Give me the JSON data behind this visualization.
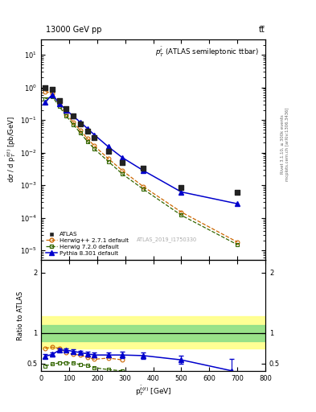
{
  "title_top": "13000 GeV pp",
  "title_right": "tt̅",
  "plot_label": "$p_T^{\\bar{t}}$ (ATLAS semileptonic ttbar)",
  "watermark": "ATLAS_2019_I1750330",
  "right_label1": "Rivet 3.1.10, ≥ 300k events",
  "right_label2": "mcplots.cern.ch [arXiv:1306.3436]",
  "ylabel_main": "dσ / d p$_T^{\\bar{t}(t)}$ [pb/GeV]",
  "ylabel_ratio": "Ratio to ATLAS",
  "xlabel": "p$_T^{\\bar{t}(t)}$ [GeV]",
  "atlas_x": [
    15,
    40,
    65,
    90,
    115,
    140,
    165,
    190,
    240,
    290,
    365,
    500,
    700
  ],
  "atlas_y": [
    1.0,
    0.85,
    0.4,
    0.22,
    0.13,
    0.075,
    0.045,
    0.028,
    0.011,
    0.005,
    0.0033,
    0.00085,
    0.0006
  ],
  "herwig_x": [
    15,
    40,
    65,
    90,
    115,
    140,
    165,
    190,
    240,
    290,
    365,
    500,
    700
  ],
  "herwig_y": [
    0.75,
    0.65,
    0.3,
    0.15,
    0.085,
    0.048,
    0.027,
    0.016,
    0.0065,
    0.0028,
    0.0009,
    0.00015,
    1.8e-05
  ],
  "herwig2_x": [
    15,
    40,
    65,
    90,
    115,
    140,
    165,
    190,
    240,
    290,
    365,
    500,
    700
  ],
  "herwig2_y": [
    0.45,
    0.52,
    0.26,
    0.13,
    0.072,
    0.04,
    0.022,
    0.013,
    0.0053,
    0.0022,
    0.00075,
    0.00012,
    1.5e-05
  ],
  "pythia_x": [
    15,
    40,
    65,
    90,
    115,
    140,
    165,
    190,
    240,
    290,
    365,
    500,
    700
  ],
  "pythia_y": [
    0.35,
    0.6,
    0.32,
    0.2,
    0.13,
    0.085,
    0.055,
    0.035,
    0.015,
    0.007,
    0.0028,
    0.00062,
    0.00027
  ],
  "ratio_herwig_x": [
    15,
    40,
    65,
    90,
    115,
    140,
    165,
    190,
    240,
    290
  ],
  "ratio_herwig_y": [
    0.75,
    0.77,
    0.75,
    0.68,
    0.65,
    0.64,
    0.6,
    0.57,
    0.59,
    0.56
  ],
  "ratio_herwig2_x": [
    15,
    40,
    65,
    90,
    115,
    140,
    165,
    190,
    240,
    290
  ],
  "ratio_herwig2_y": [
    0.46,
    0.49,
    0.51,
    0.51,
    0.51,
    0.48,
    0.47,
    0.43,
    0.4,
    0.38
  ],
  "ratio_pythia_x": [
    15,
    40,
    65,
    90,
    115,
    140,
    165,
    190,
    240,
    290,
    365,
    500,
    680
  ],
  "ratio_pythia_y": [
    0.62,
    0.65,
    0.72,
    0.72,
    0.7,
    0.68,
    0.66,
    0.64,
    0.64,
    0.64,
    0.63,
    0.56,
    0.38
  ],
  "ratio_pythia_yerr": [
    0.03,
    0.03,
    0.03,
    0.03,
    0.03,
    0.03,
    0.04,
    0.04,
    0.04,
    0.05,
    0.05,
    0.07,
    0.2
  ],
  "band_yellow_lo": 0.75,
  "band_yellow_hi": 1.28,
  "band_green_lo": 0.87,
  "band_green_hi": 1.13,
  "color_atlas": "#222222",
  "color_herwig": "#cc6600",
  "color_herwig2": "#336600",
  "color_pythia": "#0000cc",
  "xlim": [
    0,
    800
  ],
  "ylim_main": [
    5e-06,
    30
  ],
  "ylim_ratio": [
    0.38,
    2.2
  ],
  "ratio_yticks": [
    0.5,
    1.0,
    2.0
  ],
  "ratio_yticklabels": [
    "0.5",
    "1",
    "2"
  ]
}
